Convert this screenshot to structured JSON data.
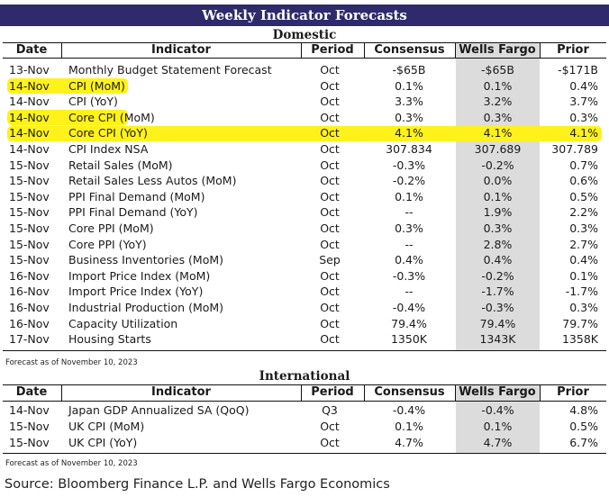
{
  "title": "Weekly Indicator Forecasts",
  "columns": {
    "date": "Date",
    "indicator": "Indicator",
    "period": "Period",
    "consensus": "Consensus",
    "wells_fargo": "Wells Fargo",
    "prior": "Prior"
  },
  "domestic": {
    "title": "Domestic",
    "rows": [
      {
        "date": "13-Nov",
        "indicator": "Monthly Budget Statement Forecast",
        "period": "Oct",
        "consensus": "-$65B",
        "wells_fargo": "-$65B",
        "prior": "-$171B",
        "highlight": false
      },
      {
        "date": "14-Nov",
        "indicator": "CPI (MoM)",
        "period": "Oct",
        "consensus": "0.1%",
        "wells_fargo": "0.1%",
        "prior": "0.4%",
        "highlight": "left"
      },
      {
        "date": "14-Nov",
        "indicator": "CPI (YoY)",
        "period": "Oct",
        "consensus": "3.3%",
        "wells_fargo": "3.2%",
        "prior": "3.7%",
        "highlight": false
      },
      {
        "date": "14-Nov",
        "indicator": "Core CPI (MoM)",
        "period": "Oct",
        "consensus": "0.3%",
        "wells_fargo": "0.3%",
        "prior": "0.3%",
        "highlight": "left"
      },
      {
        "date": "14-Nov",
        "indicator": "Core CPI (YoY)",
        "period": "Oct",
        "consensus": "4.1%",
        "wells_fargo": "4.1%",
        "prior": "4.1%",
        "highlight": "full"
      },
      {
        "date": "14-Nov",
        "indicator": "CPI Index NSA",
        "period": "Oct",
        "consensus": "307.834",
        "wells_fargo": "307.689",
        "prior": "307.789",
        "highlight": false
      },
      {
        "date": "15-Nov",
        "indicator": "Retail Sales (MoM)",
        "period": "Oct",
        "consensus": "-0.3%",
        "wells_fargo": "-0.2%",
        "prior": "0.7%",
        "highlight": false
      },
      {
        "date": "15-Nov",
        "indicator": "Retail Sales Less Autos (MoM)",
        "period": "Oct",
        "consensus": "-0.2%",
        "wells_fargo": "0.0%",
        "prior": "0.6%",
        "highlight": false
      },
      {
        "date": "15-Nov",
        "indicator": "PPI Final Demand (MoM)",
        "period": "Oct",
        "consensus": "0.1%",
        "wells_fargo": "0.1%",
        "prior": "0.5%",
        "highlight": false
      },
      {
        "date": "15-Nov",
        "indicator": "PPI Final Demand (YoY)",
        "period": "Oct",
        "consensus": "--",
        "wells_fargo": "1.9%",
        "prior": "2.2%",
        "highlight": false
      },
      {
        "date": "15-Nov",
        "indicator": "Core PPI (MoM)",
        "period": "Oct",
        "consensus": "0.3%",
        "wells_fargo": "0.3%",
        "prior": "0.3%",
        "highlight": false
      },
      {
        "date": "15-Nov",
        "indicator": "Core PPI (YoY)",
        "period": "Oct",
        "consensus": "--",
        "wells_fargo": "2.8%",
        "prior": "2.7%",
        "highlight": false
      },
      {
        "date": "15-Nov",
        "indicator": "Business Inventories (MoM)",
        "period": "Sep",
        "consensus": "0.4%",
        "wells_fargo": "0.4%",
        "prior": "0.4%",
        "highlight": false
      },
      {
        "date": "16-Nov",
        "indicator": "Import Price Index (MoM)",
        "period": "Oct",
        "consensus": "-0.3%",
        "wells_fargo": "-0.2%",
        "prior": "0.1%",
        "highlight": false
      },
      {
        "date": "16-Nov",
        "indicator": "Import Price Index (YoY)",
        "period": "Oct",
        "consensus": "--",
        "wells_fargo": "-1.7%",
        "prior": "-1.7%",
        "highlight": false
      },
      {
        "date": "16-Nov",
        "indicator": "Industrial Production (MoM)",
        "period": "Oct",
        "consensus": "-0.4%",
        "wells_fargo": "-0.3%",
        "prior": "0.3%",
        "highlight": false
      },
      {
        "date": "16-Nov",
        "indicator": "Capacity Utilization",
        "period": "Oct",
        "consensus": "79.4%",
        "wells_fargo": "79.4%",
        "prior": "79.7%",
        "highlight": false
      },
      {
        "date": "17-Nov",
        "indicator": "Housing Starts",
        "period": "Oct",
        "consensus": "1350K",
        "wells_fargo": "1343K",
        "prior": "1358K",
        "highlight": false
      }
    ],
    "note": "Forecast as of November 10, 2023"
  },
  "international": {
    "title": "International",
    "rows": [
      {
        "date": "14-Nov",
        "indicator": "Japan GDP Annualized SA (QoQ)",
        "period": "Q3",
        "consensus": "-0.4%",
        "wells_fargo": "-0.4%",
        "prior": "4.8%",
        "highlight": false
      },
      {
        "date": "15-Nov",
        "indicator": "UK CPI (MoM)",
        "period": "Oct",
        "consensus": "0.1%",
        "wells_fargo": "0.1%",
        "prior": "0.5%",
        "highlight": false
      },
      {
        "date": "15-Nov",
        "indicator": "UK CPI (YoY)",
        "period": "Oct",
        "consensus": "4.7%",
        "wells_fargo": "4.7%",
        "prior": "6.7%",
        "highlight": false
      }
    ],
    "note": "Forecast as of November 10, 2023"
  },
  "source": "Source: Bloomberg Finance L.P. and Wells Fargo Economics",
  "colors": {
    "title_bg": "#2e2a6b",
    "wf_shade": "#dcdcdc",
    "highlight": "#fff21a"
  }
}
